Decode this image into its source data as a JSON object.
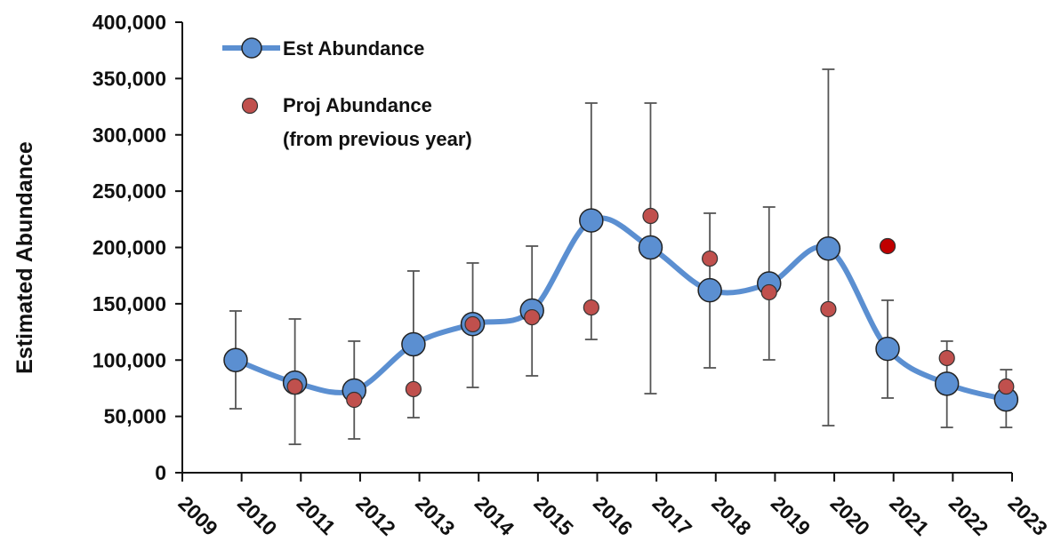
{
  "chart_data": {
    "type": "line",
    "y_label": "Estimated Abundance",
    "x": [
      2009.9,
      2010.9,
      2011.9,
      2012.9,
      2013.9,
      2014.9,
      2015.9,
      2016.9,
      2017.9,
      2018.9,
      2019.9,
      2020.9,
      2021.9,
      2022.9
    ],
    "xlim": [
      2009,
      2023
    ],
    "xticks": [
      2009,
      2010,
      2011,
      2012,
      2013,
      2014,
      2015,
      2016,
      2017,
      2018,
      2019,
      2020,
      2021,
      2022,
      2023
    ],
    "ylim": [
      0,
      400000
    ],
    "yticks": [
      0,
      {
        "value": 50000,
        "label": "50,000"
      },
      {
        "value": 100000,
        "label": "100,000"
      },
      {
        "value": 150000,
        "label": "150,000"
      },
      {
        "value": 200000,
        "label": "200,000"
      },
      {
        "value": 250000,
        "label": "250,000"
      },
      {
        "value": 300000,
        "label": "300,000"
      },
      {
        "value": 350000,
        "label": "350,000"
      },
      {
        "value": 400000,
        "label": "400,000"
      }
    ],
    "legend": "upper left",
    "series": [
      {
        "name": "Est Abundance",
        "color": "#5b8fd1",
        "smooth": true,
        "values": [
          100000,
          80000,
          73000,
          114000,
          132000,
          144000,
          224000,
          200000,
          162000,
          168000,
          199000,
          110000,
          79000,
          65000
        ],
        "upper": [
          143600,
          136500,
          116800,
          179100,
          186200,
          201200,
          328200,
          328200,
          230400,
          235900,
          358200,
          153100,
          116800,
          91500
        ],
        "lower": [
          56800,
          25200,
          30000,
          48900,
          75700,
          86000,
          118300,
          70200,
          93100,
          100200,
          41800,
          66300,
          40200,
          40200
        ]
      },
      {
        "name": "Proj Abundance\n(from previous year)",
        "color": "#c0504d",
        "markers_only": true,
        "highlight": {
          "index": 11,
          "color": "#c00000"
        },
        "values": [
          null,
          76500,
          64700,
          74200,
          131800,
          138000,
          146700,
          228000,
          190100,
          160200,
          145200,
          201200,
          101800,
          76500
        ]
      }
    ]
  }
}
